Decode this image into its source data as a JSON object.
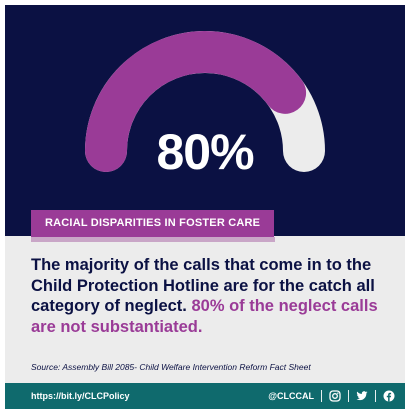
{
  "gauge": {
    "percent_label": "80%",
    "value": 0.8,
    "fill_color": "#9a3b97",
    "track_color": "#ececec",
    "background_color": "#0b1143"
  },
  "banner": {
    "title": "RACIAL DISPARITIES IN FOSTER CARE"
  },
  "body": {
    "main_text": "The majority of the calls that come in to the Child Protection Hotline are for the catch all category of neglect.",
    "highlight_text": "80% of the neglect calls are not substantiated."
  },
  "source": {
    "text": "Source: Assembly Bill 2085- Child Welfare Intervention Reform Fact Sheet"
  },
  "footer": {
    "link": "https://bit.ly/CLCPolicy",
    "handle": "@CLCCAL",
    "icons": [
      "instagram-icon",
      "twitter-icon",
      "facebook-icon"
    ]
  }
}
